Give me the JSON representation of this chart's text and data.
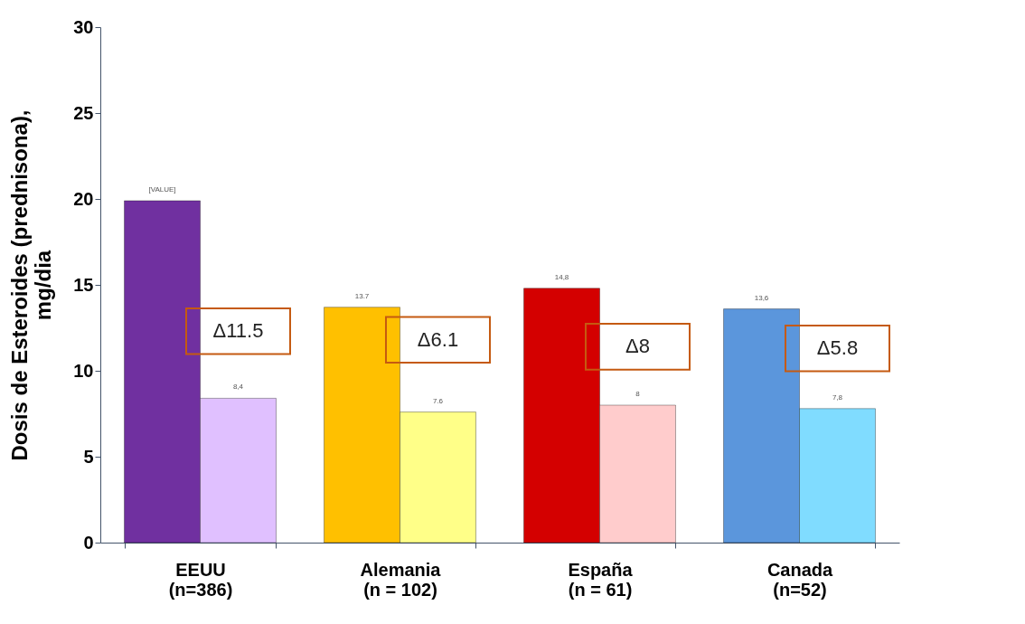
{
  "chart_data": {
    "type": "bar",
    "ylabel": "Dosis de Esteroides (prednisona),\nmg/dia",
    "categories": [
      "EEUU\n(n=386)",
      "Alemania\n(n = 102)",
      "España\n(n = 61)",
      "Canada\n(n=52)"
    ],
    "series": [
      {
        "colors": [
          "#7030a0",
          "#ffc000",
          "#d40000",
          "#5b96dc"
        ],
        "values": [
          19.9,
          13.7,
          14.8,
          13.6
        ],
        "value_labels": [
          "[VALUE]",
          "13.7",
          "14,8",
          "13,6"
        ]
      },
      {
        "colors": [
          "#e0c0ff",
          "#ffff88",
          "#ffcccc",
          "#80dcff"
        ],
        "values": [
          8.4,
          7.6,
          8,
          7.8
        ],
        "value_labels": [
          "8,4",
          "7.6",
          "8",
          "7,8"
        ]
      }
    ],
    "annotations": [
      {
        "text": "Δ11.5",
        "x": "EEUU\n(n=386)",
        "y": 12.3
      },
      {
        "text": "Δ6.1",
        "x": "Alemania\n(n = 102)",
        "y": 11.8
      },
      {
        "text": "Δ8",
        "x": "España\n(n = 61)",
        "y": 11.4
      },
      {
        "text": "Δ5.8",
        "x": "Canada\n(n=52)",
        "y": 11.3
      }
    ],
    "ylim": [
      0,
      30
    ],
    "yticks": [
      0,
      5,
      10,
      15,
      20,
      25,
      30
    ]
  }
}
